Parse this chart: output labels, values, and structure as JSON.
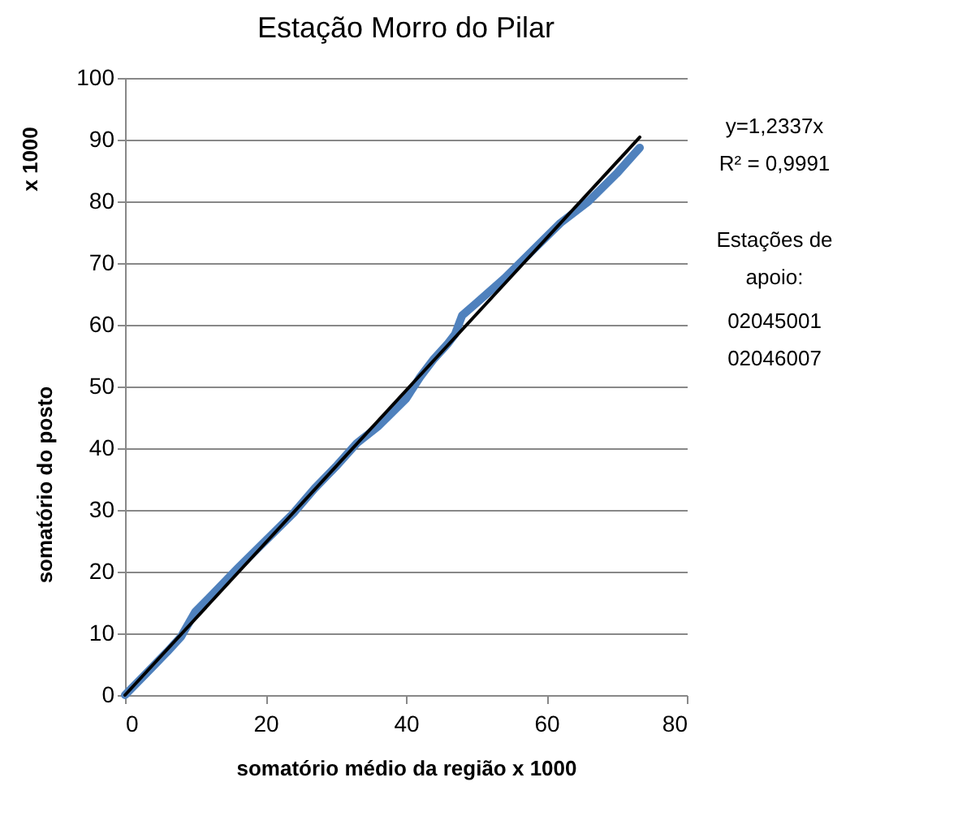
{
  "chart_data": {
    "type": "line",
    "title": "Estação Morro do Pilar",
    "xlabel": "somatório médio da região       x  1000",
    "ylabel": "somatório do posto",
    "annotations": [
      "x 1000",
      "y=1,2337x",
      "R² = 0,9991",
      "Estações de apoio:",
      "02045001",
      "02046007"
    ],
    "series": [
      {
        "color": "#4f81bd",
        "x": [
          0,
          3,
          6,
          8,
          10,
          12,
          16,
          20,
          24,
          27,
          30,
          33,
          36,
          40,
          42,
          44,
          46,
          47,
          48,
          50,
          54,
          58,
          62,
          66,
          70,
          73.3
        ],
        "values": [
          0,
          3.5,
          7,
          9.5,
          13.5,
          15.8,
          20.5,
          25,
          29.5,
          33.5,
          37,
          40.8,
          43.5,
          48,
          51.5,
          54.5,
          57,
          58.5,
          61.5,
          63.5,
          67.5,
          72,
          76.5,
          80,
          84.5,
          88.7
        ]
      },
      {
        "type": "line",
        "color": "#000000",
        "x": [
          0,
          73.3
        ],
        "values": [
          0,
          90.4
        ]
      }
    ],
    "xlim": [
      0,
      80
    ],
    "xticks": [
      0,
      20,
      40,
      60,
      80
    ],
    "ylim": [
      0,
      100
    ],
    "yticks": [
      0,
      10,
      20,
      30,
      40,
      50,
      60,
      70,
      80,
      90,
      100
    ],
    "grid": "y"
  }
}
